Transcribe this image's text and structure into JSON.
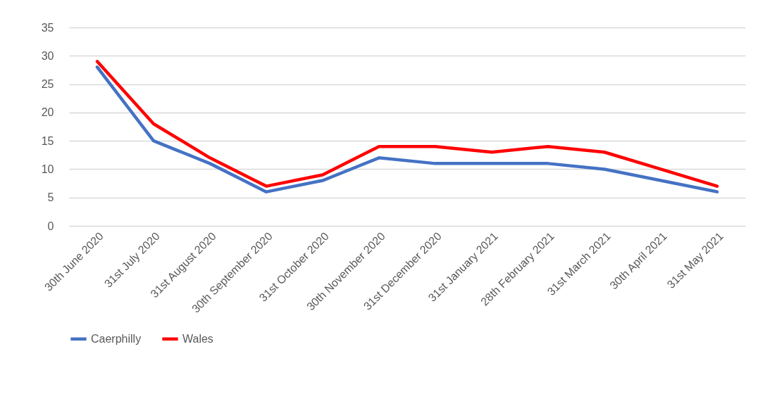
{
  "chart_data": {
    "type": "line",
    "categories": [
      "30th June 2020",
      "31st July 2020",
      "31st August 2020",
      "30th September 2020",
      "31st October 2020",
      "30th November 2020",
      "31st December 2020",
      "31st January 2021",
      "28th February 2021",
      "31st March 2021",
      "30th April 2021",
      "31st May 2021"
    ],
    "series": [
      {
        "name": "Caerphilly",
        "color": "#4472c4",
        "values": [
          28,
          15,
          11,
          6,
          8,
          12,
          11,
          11,
          11,
          10,
          8,
          6
        ]
      },
      {
        "name": "Wales",
        "color": "#ff0000",
        "values": [
          29,
          18,
          12,
          7,
          9,
          14,
          14,
          13,
          14,
          13,
          10,
          7
        ]
      }
    ],
    "ylim": [
      0,
      35
    ],
    "yticks": [
      0,
      5,
      10,
      15,
      20,
      25,
      30,
      35
    ],
    "grid": "y",
    "legend": "bottom",
    "line_style": "solid"
  }
}
